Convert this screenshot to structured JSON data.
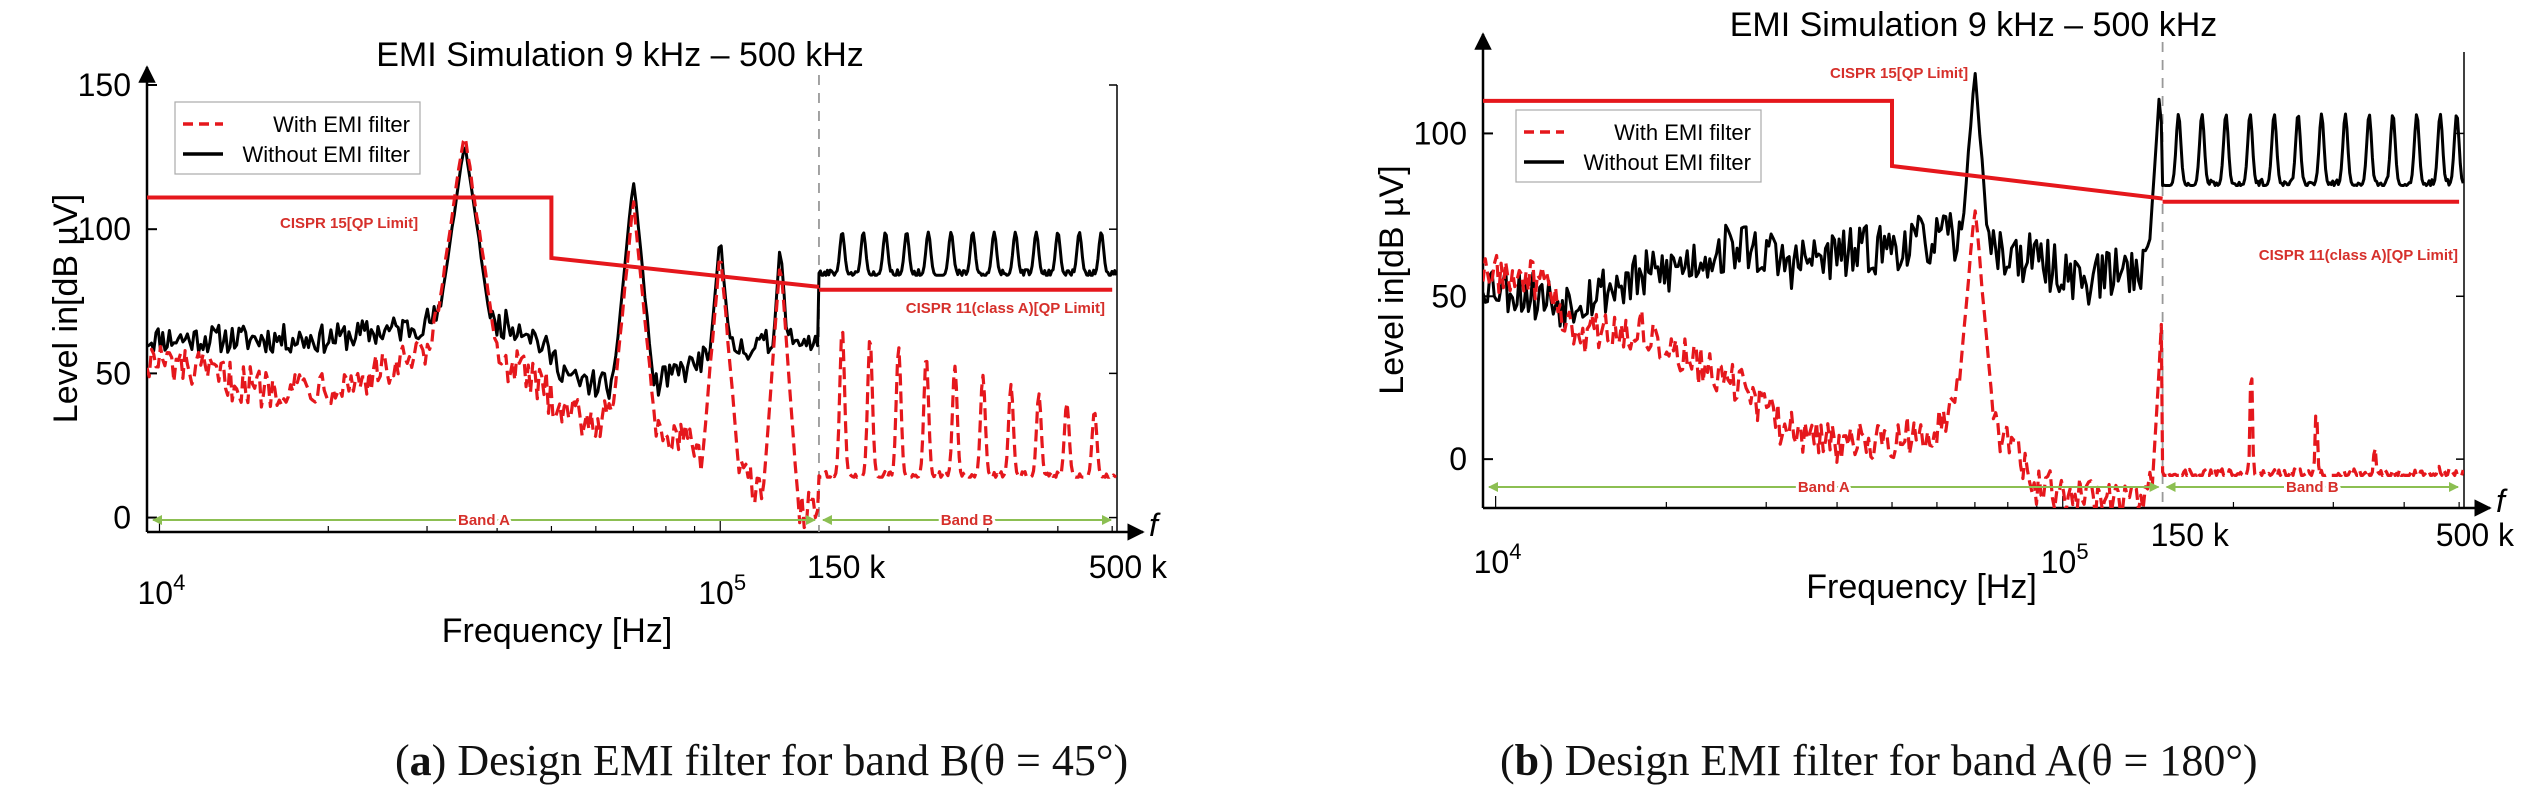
{
  "captions": {
    "a": {
      "letter": "a",
      "text": "Design EMI filter for band B(θ = 45°)"
    },
    "b": {
      "letter": "b",
      "text": "Design EMI filter for band A(θ = 180°)"
    }
  },
  "chart_data": [
    {
      "type": "line",
      "panel": "a",
      "title": "EMI  Simulation 9 kHz – 500 kHz",
      "xlabel": "Frequency [Hz]",
      "ylabel": "Level in[dB µV]",
      "x_axis_symbol": "f",
      "x_scale": "log",
      "xlim": [
        9500,
        510000
      ],
      "ylim": [
        -5,
        150
      ],
      "yticks": [
        0,
        50,
        100,
        150
      ],
      "xticklabels": {
        "decade_base": "10",
        "decade_exps": [
          "4",
          "5"
        ],
        "decade_values": [
          10000,
          100000
        ],
        "f150": "150 k",
        "f500": "500 k"
      },
      "legend": {
        "position": "top-left",
        "entries": [
          {
            "label": "With EMI filter",
            "color": "#e5171c",
            "style": "dashed"
          },
          {
            "label": "Without EMI filter",
            "color": "#000000",
            "style": "solid"
          }
        ]
      },
      "band_split_khz": 150,
      "bands": [
        {
          "label": "Band A",
          "range_khz": [
            9,
            150
          ]
        },
        {
          "label": "Band B",
          "range_khz": [
            150,
            500
          ]
        }
      ],
      "limits": [
        {
          "label": "CISPR 15[QP Limit]",
          "points": [
            [
              9500,
              111
            ],
            [
              50000,
              111
            ],
            [
              50000,
              90
            ],
            [
              150000,
              80
            ]
          ]
        },
        {
          "label": "CISPR 11(class A)[QP Limit]",
          "points": [
            [
              150000,
              79
            ],
            [
              500000,
              79
            ]
          ]
        }
      ],
      "series": [
        {
          "name": "Without EMI filter",
          "style": "solid",
          "color": "#000000",
          "base": [
            [
              9500,
              62
            ],
            [
              20000,
              62
            ],
            [
              28000,
              66
            ],
            [
              32000,
              70
            ],
            [
              45000,
              66
            ],
            [
              55000,
              47
            ],
            [
              75000,
              45
            ],
            [
              100000,
              58
            ],
            [
              140000,
              62
            ],
            [
              150000,
              60
            ]
          ],
          "base_noise": 5,
          "base_step": 0.004,
          "resonances": [
            [
              35000,
              130,
              0.012
            ],
            [
              70000,
              118,
              0.008
            ],
            [
              100000,
              98,
              0.007
            ],
            [
              128000,
              95,
              0.006
            ]
          ],
          "bandB": {
            "start": 150000,
            "base": 84,
            "amp": 15,
            "peaks": [
              165000,
              180000,
              197000,
              215000,
              235000,
              258000,
              282000,
              308000,
              336000,
              366000,
              400000,
              437000,
              478000
            ]
          }
        },
        {
          "name": "With EMI filter",
          "style": "dashed",
          "color": "#e5171c",
          "base": [
            [
              9500,
              55
            ],
            [
              15000,
              45
            ],
            [
              22000,
              47
            ],
            [
              30000,
              56
            ],
            [
              34000,
              90
            ],
            [
              38000,
              60
            ],
            [
              55000,
              36
            ],
            [
              75000,
              30
            ],
            [
              95000,
              22
            ],
            [
              125000,
              8
            ],
            [
              140000,
              3
            ],
            [
              150000,
              0
            ]
          ],
          "base_noise": 7,
          "base_step": 0.004,
          "resonances": [
            [
              35000,
              134,
              0.012
            ],
            [
              70000,
              110,
              0.008
            ],
            [
              100000,
              93,
              0.007
            ],
            [
              128000,
              90,
              0.006
            ]
          ],
          "bandB": {
            "start": 150000,
            "base": 14,
            "amp": 52,
            "decay": 0.55,
            "peaks": [
              165000,
              185000,
              208000,
              233000,
              262000,
              294000,
              330000,
              370000,
              415000,
              465000
            ]
          }
        }
      ]
    },
    {
      "type": "line",
      "panel": "b",
      "title": "EMI  Simulation 9 kHz – 500 kHz",
      "xlabel": "Frequency [Hz]",
      "ylabel": "Level in[dB µV]",
      "x_axis_symbol": "f",
      "x_scale": "log",
      "xlim": [
        9500,
        510000
      ],
      "ylim": [
        -15,
        125
      ],
      "yticks": [
        0,
        50,
        100
      ],
      "xticklabels": {
        "decade_base": "10",
        "decade_exps": [
          "4",
          "5"
        ],
        "decade_values": [
          10000,
          100000
        ],
        "f150": "150 k",
        "f500": "500 k"
      },
      "legend": {
        "position": "top-left",
        "entries": [
          {
            "label": "With EMI filter",
            "color": "#e5171c",
            "style": "dashed"
          },
          {
            "label": "Without EMI filter",
            "color": "#000000",
            "style": "solid"
          }
        ]
      },
      "band_split_khz": 150,
      "bands": [
        {
          "label": "Band A",
          "range_khz": [
            9,
            150
          ]
        },
        {
          "label": "Band B",
          "range_khz": [
            150,
            500
          ]
        }
      ],
      "limits": [
        {
          "label": "CISPR 15[QP Limit]",
          "points": [
            [
              9500,
              110
            ],
            [
              50000,
              110
            ],
            [
              50000,
              90
            ],
            [
              150000,
              80
            ]
          ]
        },
        {
          "label": "CISPR 11(class A)[QP Limit]",
          "points": [
            [
              150000,
              79
            ],
            [
              500000,
              79
            ]
          ]
        }
      ],
      "series": [
        {
          "name": "Without EMI filter",
          "style": "solid",
          "color": "#000000",
          "base": [
            [
              9500,
              55
            ],
            [
              13000,
              48
            ],
            [
              20000,
              58
            ],
            [
              27000,
              66
            ],
            [
              33000,
              60
            ],
            [
              45000,
              64
            ],
            [
              62000,
              68
            ],
            [
              85000,
              62
            ],
            [
              110000,
              55
            ],
            [
              140000,
              60
            ],
            [
              150000,
              62
            ]
          ],
          "base_noise": 8,
          "base_step": 0.004,
          "resonances": [
            [
              70000,
              120,
              0.007
            ],
            [
              148000,
              112,
              0.006
            ]
          ],
          "bandB": {
            "start": 150000,
            "base": 84,
            "amp": 22,
            "peaks": [
              160000,
              176000,
              194000,
              214000,
              236000,
              260000,
              286000,
              315000,
              347000,
              382000,
              421000,
              463000,
              495000
            ]
          }
        },
        {
          "name": "With EMI filter",
          "style": "dashed",
          "color": "#e5171c",
          "base": [
            [
              9500,
              57
            ],
            [
              12000,
              55
            ],
            [
              14000,
              38
            ],
            [
              18000,
              40
            ],
            [
              22000,
              30
            ],
            [
              27000,
              22
            ],
            [
              32000,
              10
            ],
            [
              40000,
              5
            ],
            [
              50000,
              6
            ],
            [
              60000,
              10
            ],
            [
              66000,
              20
            ],
            [
              80000,
              5
            ],
            [
              90000,
              -8
            ],
            [
              110000,
              -12
            ],
            [
              135000,
              -13
            ],
            [
              145000,
              -8
            ],
            [
              150000,
              -2
            ]
          ],
          "base_noise": 6,
          "base_step": 0.004,
          "resonances": [
            [
              70000,
              78,
              0.008
            ],
            [
              150000,
              48,
              0.005
            ]
          ],
          "bandB": {
            "start": 150000,
            "base": -5,
            "amp": 0,
            "decay": 0,
            "peaks": []
          },
          "spikes": [
            [
              215000,
              30
            ],
            [
              280000,
              16
            ],
            [
              355000,
              4
            ],
            [
              460000,
              -2
            ]
          ]
        }
      ]
    }
  ]
}
